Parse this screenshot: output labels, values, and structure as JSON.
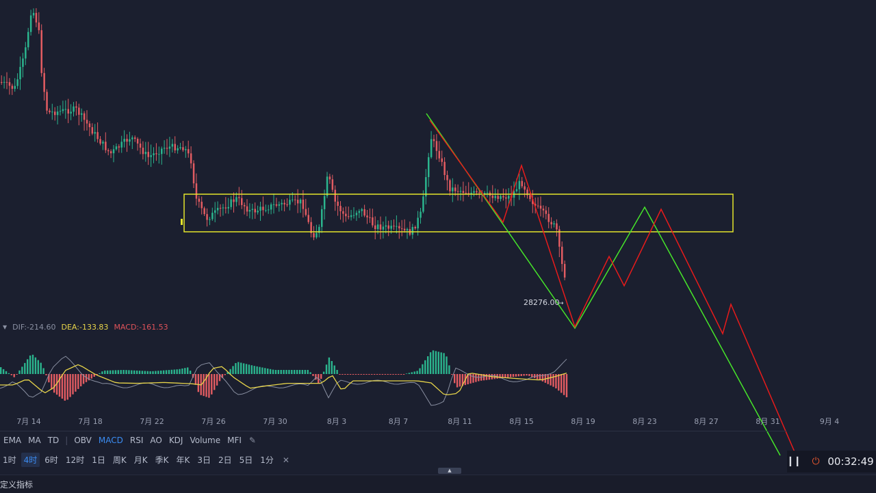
{
  "colors": {
    "background": "#1b1f2f",
    "up_candle": "#2bb58e",
    "down_candle": "#e35c62",
    "box": "#e5e52b",
    "green_line": "#46e62a",
    "red_line": "#e81b1b",
    "dea_line": "#e8d54a",
    "dif_line": "#8a90a2",
    "accent": "#3b8cf2"
  },
  "chart_data": {
    "type": "candlestick",
    "x_ticks": [
      "7月 14",
      "7月 18",
      "7月 22",
      "7月 26",
      "7月 30",
      "8月 3",
      "8月 7",
      "8月 11",
      "8月 15",
      "8月 19",
      "8月 23",
      "8月 27",
      "8月 31",
      "9月 4"
    ],
    "price_label": "28276.00",
    "annotations": [
      "rectangle zone",
      "green projected zigzag",
      "red projected zigzag"
    ]
  },
  "macd": {
    "dif": "DIF:-214.60",
    "dea": "DEA:-133.83",
    "macd": "MACD:-161.53"
  },
  "indicators": {
    "items": [
      "EMA",
      "MA",
      "TD",
      "OBV",
      "MACD",
      "RSI",
      "AO",
      "KDJ",
      "Volume",
      "MFI"
    ],
    "active": "MACD"
  },
  "timeframes": {
    "items": [
      "1时",
      "4时",
      "6时",
      "12时",
      "1日",
      "周K",
      "月K",
      "季K",
      "年K",
      "3日",
      "2日",
      "5日",
      "1分"
    ],
    "active": "4时"
  },
  "icons": {
    "edit": "edit-icon",
    "close": "close-icon",
    "pause": "pause-icon",
    "power": "power-icon",
    "collapse": "chevron-up-icon"
  },
  "bottom": {
    "custom_indicator": "定义指标",
    "clock": "00:32:49"
  }
}
